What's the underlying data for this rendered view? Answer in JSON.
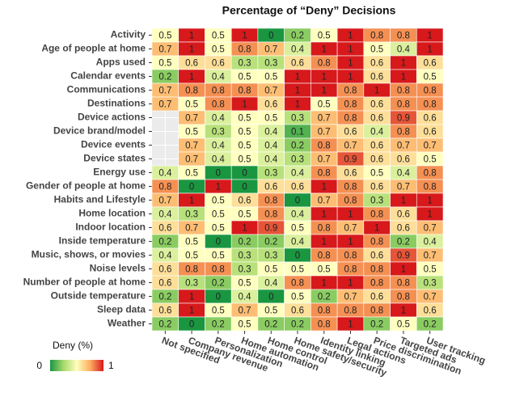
{
  "chart_data": {
    "type": "heatmap",
    "title": "Percentage of “Deny” Decisions",
    "x_categories": [
      "Not specified",
      "Company revenue",
      "Personalization",
      "Home automation",
      "Home control",
      "Home safety/security",
      "Identity linking",
      "Legal actions",
      "Price discrimination",
      "Targeted ads",
      "User tracking"
    ],
    "y_categories": [
      "Activity",
      "Age of people at home",
      "Apps used",
      "Calendar events",
      "Communications",
      "Destinations",
      "Device actions",
      "Device brand/model",
      "Device events",
      "Device states",
      "Energy use",
      "Gender of people at home",
      "Habits and Lifestyle",
      "Home location",
      "Indoor location",
      "Inside temperature",
      "Music, shows, or movies",
      "Noise levels",
      "Number of people at home",
      "Outside temperature",
      "Sleep data",
      "Weather"
    ],
    "values": [
      [
        0.5,
        1,
        0.5,
        1,
        0,
        0.2,
        0.5,
        1,
        0.8,
        0.8,
        1
      ],
      [
        0.7,
        1,
        0.5,
        0.8,
        0.7,
        0.4,
        1,
        1,
        0.5,
        0.4,
        1
      ],
      [
        0.5,
        0.6,
        0.6,
        0.3,
        0.3,
        0.6,
        0.8,
        1,
        0.6,
        1,
        0.6
      ],
      [
        0.2,
        1,
        0.4,
        0.5,
        0.5,
        1,
        1,
        1,
        0.6,
        1,
        0.5
      ],
      [
        0.7,
        0.8,
        0.8,
        0.8,
        0.7,
        1,
        1,
        0.8,
        1,
        0.8,
        0.8
      ],
      [
        0.7,
        0.5,
        0.8,
        1,
        0.6,
        1,
        0.5,
        0.8,
        0.6,
        0.8,
        0.8
      ],
      [
        null,
        0.7,
        0.4,
        0.5,
        0.5,
        0.3,
        0.7,
        0.8,
        0.6,
        0.9,
        0.6
      ],
      [
        null,
        0.5,
        0.3,
        0.5,
        0.4,
        0.1,
        0.7,
        0.6,
        0.4,
        0.8,
        0.6
      ],
      [
        null,
        0.7,
        0.4,
        0.5,
        0.4,
        0.2,
        0.8,
        0.7,
        0.6,
        0.7,
        0.7
      ],
      [
        null,
        0.7,
        0.4,
        0.5,
        0.4,
        0.3,
        0.7,
        0.9,
        0.6,
        0.6,
        0.5
      ],
      [
        0.4,
        0.5,
        0,
        0,
        0.3,
        0.4,
        0.8,
        0.6,
        0.5,
        0.4,
        0.8
      ],
      [
        0.8,
        0,
        1,
        0,
        0.6,
        0.6,
        1,
        0.8,
        0.6,
        0.7,
        0.8
      ],
      [
        0.7,
        1,
        0.5,
        0.6,
        0.8,
        0,
        0.7,
        0.8,
        0.3,
        1,
        1
      ],
      [
        0.4,
        0.3,
        0.5,
        0.5,
        0.8,
        0.4,
        1,
        1,
        0.8,
        0.6,
        1
      ],
      [
        0.6,
        0.7,
        0.5,
        1,
        0.9,
        0.5,
        0.8,
        0.7,
        1,
        0.6,
        0.7
      ],
      [
        0.2,
        0.5,
        0,
        0.2,
        0.2,
        0.4,
        1,
        1,
        0.8,
        0.2,
        0.4
      ],
      [
        0.4,
        0.5,
        0.5,
        0.3,
        0.3,
        0,
        0.8,
        0.8,
        0.6,
        0.9,
        0.7
      ],
      [
        0.6,
        0.8,
        0.8,
        0.3,
        0.5,
        0.5,
        0.5,
        0.8,
        0.8,
        1,
        0.5
      ],
      [
        0.6,
        0.3,
        0.2,
        0.5,
        0.4,
        0.8,
        1,
        1,
        0.8,
        0.8,
        0.3
      ],
      [
        0.2,
        1,
        0,
        0.4,
        0,
        0.5,
        0.2,
        0.7,
        0.6,
        0.8,
        0.7
      ],
      [
        0.6,
        1,
        0.5,
        0.7,
        0.5,
        0.6,
        0.8,
        0.8,
        0.8,
        1,
        0.6
      ],
      [
        0.2,
        0,
        0.2,
        0.5,
        0.2,
        0.2,
        0.8,
        1,
        0.2,
        0.5,
        0.2
      ]
    ],
    "colors": [
      "#1a9641",
      "#a6d96a",
      "#ffffbf",
      "#fdae61",
      "#d7191c"
    ],
    "colorbar": {
      "title": "Deny (%)",
      "range": [
        0,
        1
      ]
    }
  }
}
